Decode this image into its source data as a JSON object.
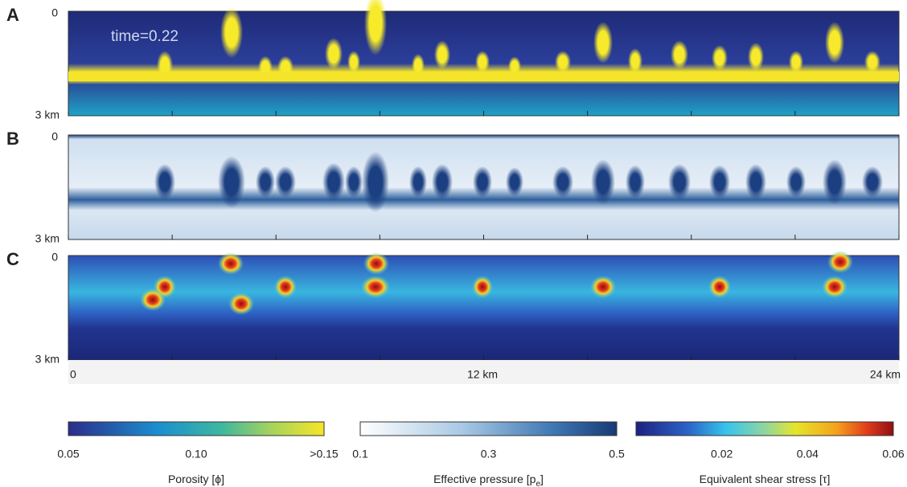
{
  "panels": [
    {
      "label": "A",
      "top_label": "0",
      "bottom_label": "3 km",
      "annotation": "time=0.22"
    },
    {
      "label": "B",
      "top_label": "0",
      "bottom_label": "3 km"
    },
    {
      "label": "C",
      "top_label": "0",
      "bottom_label": "3 km"
    }
  ],
  "x_axis": {
    "ticks": [
      "0",
      "12 km",
      "24 km"
    ]
  },
  "colorbars": [
    {
      "title": [
        "Porosity [ϕ]"
      ],
      "ticks": [
        "0.05",
        "0.10",
        ">0.15"
      ]
    },
    {
      "title": [
        "Effective pressure [p",
        "e",
        "]"
      ],
      "ticks": [
        "0.1",
        "0.3",
        "0.5"
      ]
    },
    {
      "title": [
        "Equivalent shear stress [τ]"
      ],
      "ticks": [
        "0.02",
        "0.04",
        "0.06"
      ]
    }
  ]
}
